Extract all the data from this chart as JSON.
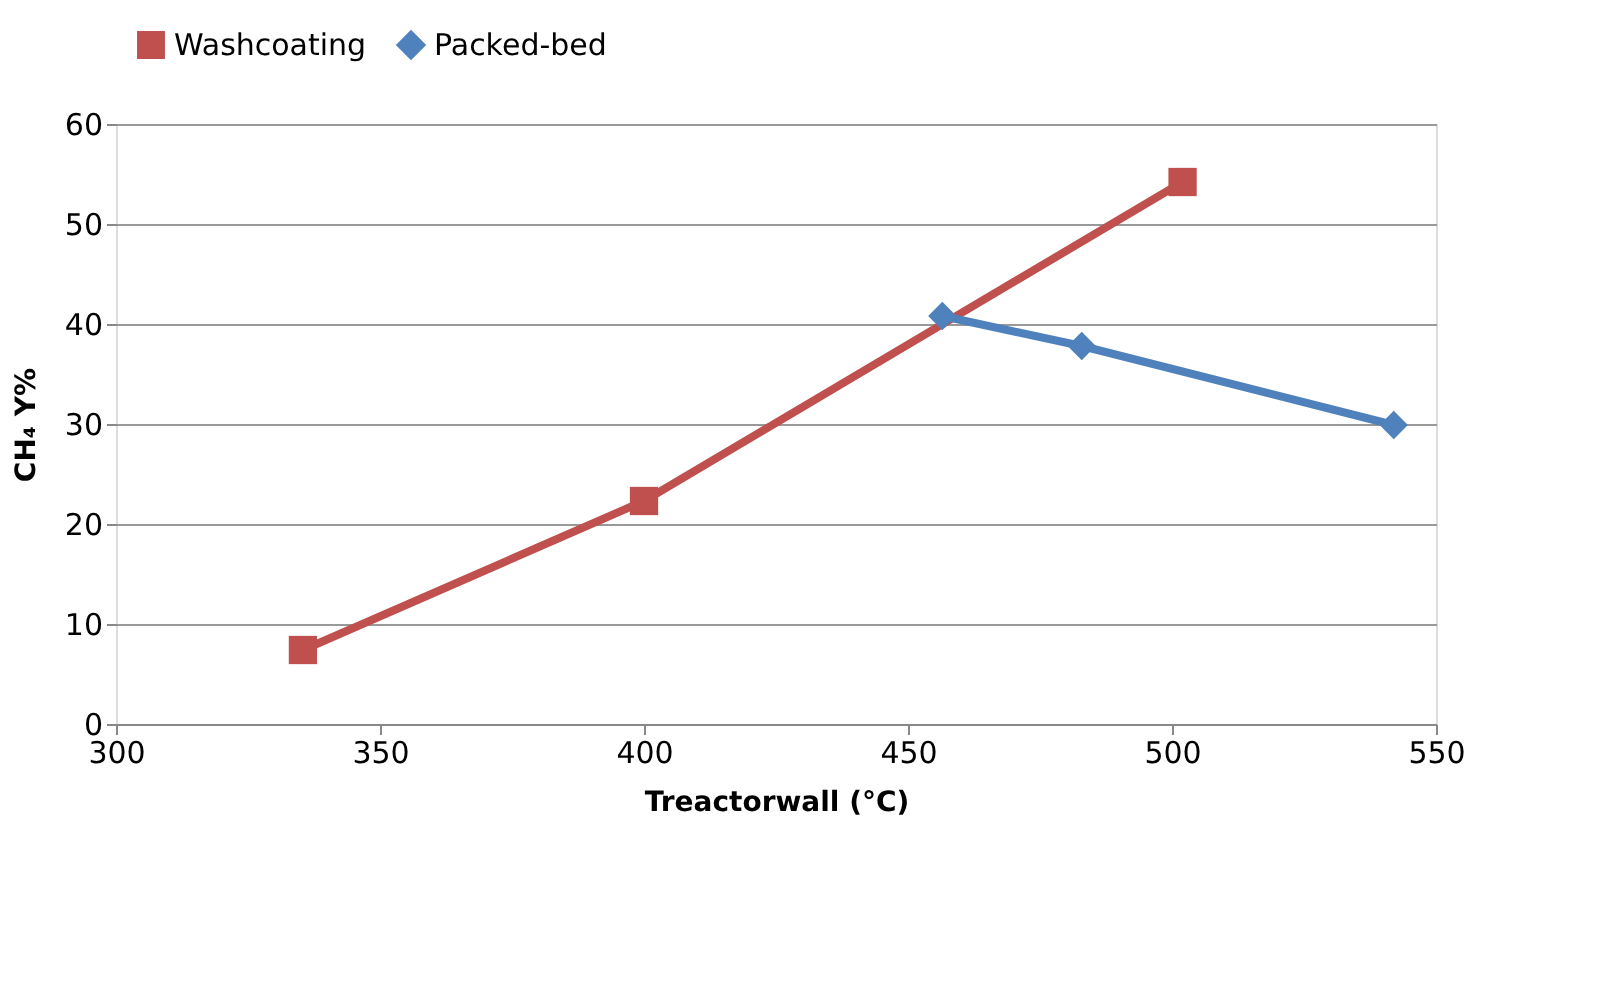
{
  "chart_data": {
    "type": "line",
    "xlabel": "Treactorwall (°C)",
    "ylabel": "CH₄ Y%",
    "xlim": [
      300,
      550
    ],
    "xticks": [
      300,
      350,
      400,
      450,
      500,
      550
    ],
    "ylim": [
      0,
      60
    ],
    "yticks": [
      0,
      10,
      20,
      30,
      40,
      50,
      60
    ],
    "grid": "y",
    "legend": "top",
    "series": [
      {
        "name": "Washcoating",
        "color": "#c0504d",
        "marker": "square",
        "x": [
          335.4,
          400,
          502
        ],
        "values": [
          7.4,
          22.3,
          54.2
        ]
      },
      {
        "name": "Packed-bed",
        "color": "#4f81bd",
        "marker": "diamond",
        "x": [
          456.5,
          482.9,
          542
        ],
        "values": [
          40.8,
          37.8,
          29.9
        ]
      }
    ]
  }
}
